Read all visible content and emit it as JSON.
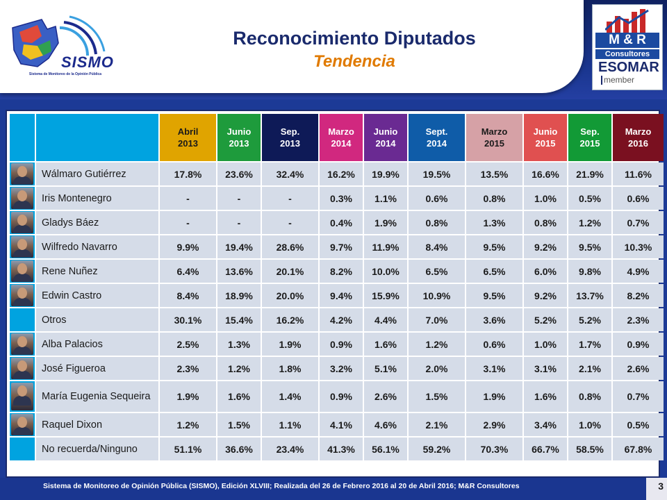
{
  "header": {
    "title": "Reconocimiento Diputados",
    "subtitle": "Tendencia"
  },
  "logos": {
    "sismo_word": "SISMO",
    "sismo_caption": "Sistema de Monitoreo de la Opinión Pública",
    "mr_name": "M & R",
    "mr_consultores": "Consultores",
    "mr_esomar": "ESOMAR",
    "mr_member": "member"
  },
  "table": {
    "columns": [
      {
        "line1": "Abril",
        "line2": "2013"
      },
      {
        "line1": "Junio",
        "line2": "2013"
      },
      {
        "line1": "Sep.",
        "line2": "2013"
      },
      {
        "line1": "Marzo",
        "line2": "2014"
      },
      {
        "line1": "Junio",
        "line2": "2014"
      },
      {
        "line1": "Sept.",
        "line2": "2014"
      },
      {
        "line1": "Marzo",
        "line2": "2015"
      },
      {
        "line1": "Junio",
        "line2": "2015"
      },
      {
        "line1": "Sep.",
        "line2": "2015"
      },
      {
        "line1": "Marzo",
        "line2": "2016"
      }
    ],
    "rows": [
      {
        "name": "Wálmaro Gutiérrez",
        "has_photo": true,
        "values": [
          "17.8%",
          "23.6%",
          "32.4%",
          "16.2%",
          "19.9%",
          "19.5%",
          "13.5%",
          "16.6%",
          "21.9%",
          "11.6%"
        ]
      },
      {
        "name": "Iris Montenegro",
        "has_photo": true,
        "values": [
          "-",
          "-",
          "-",
          "0.3%",
          "1.1%",
          "0.6%",
          "0.8%",
          "1.0%",
          "0.5%",
          "0.6%"
        ]
      },
      {
        "name": "Gladys Báez",
        "has_photo": true,
        "values": [
          "-",
          "-",
          "-",
          "0.4%",
          "1.9%",
          "0.8%",
          "1.3%",
          "0.8%",
          "1.2%",
          "0.7%"
        ]
      },
      {
        "name": "Wilfredo Navarro",
        "has_photo": true,
        "values": [
          "9.9%",
          "19.4%",
          "28.6%",
          "9.7%",
          "11.9%",
          "8.4%",
          "9.5%",
          "9.2%",
          "9.5%",
          "10.3%"
        ]
      },
      {
        "name": "Rene Nuñez",
        "has_photo": true,
        "values": [
          "6.4%",
          "13.6%",
          "20.1%",
          "8.2%",
          "10.0%",
          "6.5%",
          "6.5%",
          "6.0%",
          "9.8%",
          "4.9%"
        ]
      },
      {
        "name": "Edwin Castro",
        "has_photo": true,
        "values": [
          "8.4%",
          "18.9%",
          "20.0%",
          "9.4%",
          "15.9%",
          "10.9%",
          "9.5%",
          "9.2%",
          "13.7%",
          "8.2%"
        ]
      },
      {
        "name": "Otros",
        "has_photo": false,
        "values": [
          "30.1%",
          "15.4%",
          "16.2%",
          "4.2%",
          "4.4%",
          "7.0%",
          "3.6%",
          "5.2%",
          "5.2%",
          "2.3%"
        ]
      },
      {
        "name": "Alba Palacios",
        "has_photo": true,
        "values": [
          "2.5%",
          "1.3%",
          "1.9%",
          "0.9%",
          "1.6%",
          "1.2%",
          "0.6%",
          "1.0%",
          "1.7%",
          "0.9%"
        ]
      },
      {
        "name": "José Figueroa",
        "has_photo": true,
        "values": [
          "2.3%",
          "1.2%",
          "1.8%",
          "3.2%",
          "5.1%",
          "2.0%",
          "3.1%",
          "3.1%",
          "2.1%",
          "2.6%"
        ]
      },
      {
        "name": "María Eugenia Sequeira",
        "has_photo": true,
        "tall": true,
        "values": [
          "1.9%",
          "1.6%",
          "1.4%",
          "0.9%",
          "2.6%",
          "1.5%",
          "1.9%",
          "1.6%",
          "0.8%",
          "0.7%"
        ]
      },
      {
        "name": "Raquel Dixon",
        "has_photo": true,
        "values": [
          "1.2%",
          "1.5%",
          "1.1%",
          "4.1%",
          "4.6%",
          "2.1%",
          "2.9%",
          "3.4%",
          "1.0%",
          "0.5%"
        ]
      },
      {
        "name": "No recuerda/Ninguno",
        "has_photo": false,
        "values": [
          "51.1%",
          "36.6%",
          "23.4%",
          "41.3%",
          "56.1%",
          "59.2%",
          "70.3%",
          "66.7%",
          "58.5%",
          "67.8%"
        ]
      }
    ]
  },
  "footer": {
    "text": "Sistema de Monitoreo de Opinión Pública (SISMO), Edición XLVIII; Realizada del  26 de Febrero 2016 al 20 de Abril 2016; M&R Consultores",
    "page_number": "3"
  },
  "colors": {
    "background": "#1c3a96",
    "title": "#1a2a6c",
    "subtitle": "#e07a00",
    "cell": "#d5dce8"
  }
}
